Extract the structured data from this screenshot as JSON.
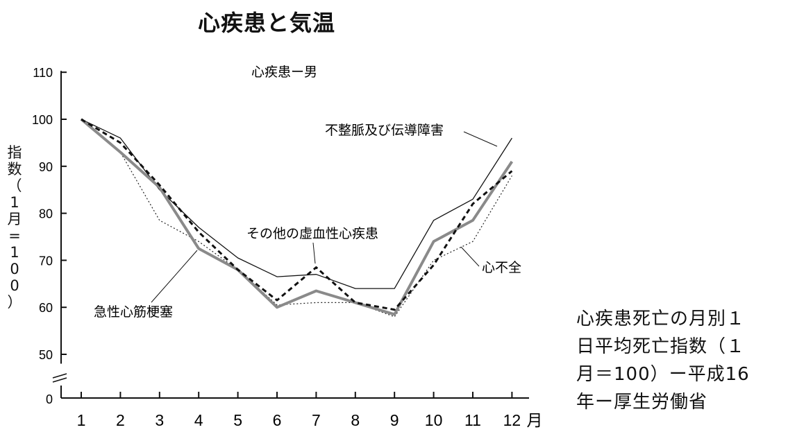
{
  "title": "心疾患と気温",
  "chart_data": {
    "type": "line",
    "subtitle": "心疾患ー男",
    "ylabel": "指数（1月=100）",
    "ylabel_chars": [
      "指",
      "数",
      "（",
      "1",
      "月",
      "=",
      "1",
      "0",
      "0",
      "）"
    ],
    "xlabel": "月",
    "categories": [
      "1",
      "2",
      "3",
      "4",
      "5",
      "6",
      "7",
      "8",
      "9",
      "10",
      "11",
      "12"
    ],
    "yticks": [
      "110",
      "100",
      "90",
      "80",
      "70",
      "60",
      "50",
      "0"
    ],
    "ylim": [
      45,
      110
    ],
    "axis_break": true,
    "grid": false,
    "series": [
      {
        "name": "不整脈及び伝導障害",
        "style": "thin-solid",
        "color": "#111111",
        "values": [
          100,
          96,
          85,
          77,
          70.5,
          66.5,
          67,
          64,
          64,
          78.5,
          83,
          96
        ]
      },
      {
        "name": "その他の虚血性心疾患",
        "style": "dashed",
        "color": "#111111",
        "values": [
          100,
          95,
          86,
          76,
          68,
          61.5,
          68.5,
          61,
          59.5,
          69,
          82,
          89
        ]
      },
      {
        "name": "急性心筋梗塞",
        "style": "thick-gray",
        "color": "#8a8a8a",
        "values": [
          100,
          93,
          85.5,
          72.5,
          68,
          60,
          63.5,
          61,
          58.5,
          74,
          78.5,
          91
        ]
      },
      {
        "name": "心不全",
        "style": "dotted",
        "color": "#222222",
        "values": [
          100,
          93,
          78.5,
          74,
          68,
          60.5,
          61,
          61,
          58,
          70,
          74,
          88
        ]
      }
    ],
    "annotations": [
      "不整脈及び伝導障害",
      "その他の虚血性心疾患",
      "心不全",
      "急性心筋梗塞"
    ]
  },
  "caption": [
    "心疾患死亡の月別１",
    "日平均死亡指数（１",
    "月＝100）ー平成16",
    "年ー厚生労働省"
  ]
}
